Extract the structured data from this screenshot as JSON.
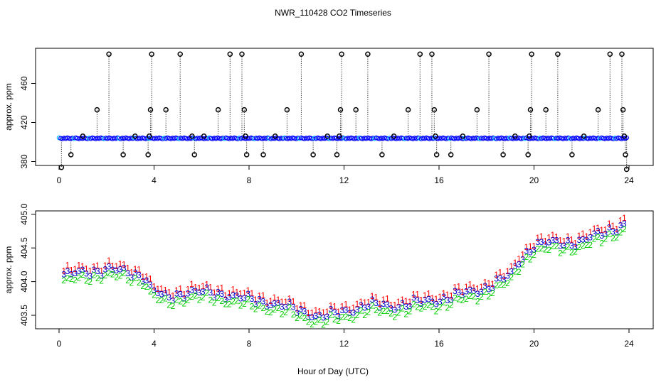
{
  "title": "NWR_110428  CO2 Timeseries",
  "xlabel": "Hour of Day (UTC)",
  "chart_data": [
    {
      "type": "scatter",
      "name": "top-panel",
      "ylabel": "approx. ppm",
      "xlim": [
        0,
        24
      ],
      "ylim": [
        376,
        496
      ],
      "x_ticks": [
        0,
        4,
        8,
        12,
        16,
        20,
        24
      ],
      "y_ticks": [
        380,
        420,
        460
      ],
      "baseline_series": {
        "name": "co2-baseline",
        "value": 403.8,
        "x_range": [
          0,
          23.9
        ],
        "colors": [
          "#0000ff",
          "#00bfff"
        ]
      },
      "spikes": [
        {
          "x": 0.1,
          "y": 374
        },
        {
          "x": 0.5,
          "y": 387
        },
        {
          "x": 1.0,
          "y": 406
        },
        {
          "x": 1.6,
          "y": 433
        },
        {
          "x": 2.1,
          "y": 490
        },
        {
          "x": 2.7,
          "y": 387
        },
        {
          "x": 3.2,
          "y": 406
        },
        {
          "x": 3.75,
          "y": 387
        },
        {
          "x": 3.8,
          "y": 406
        },
        {
          "x": 3.85,
          "y": 433
        },
        {
          "x": 3.9,
          "y": 490
        },
        {
          "x": 4.5,
          "y": 433
        },
        {
          "x": 5.1,
          "y": 490
        },
        {
          "x": 5.6,
          "y": 406
        },
        {
          "x": 5.7,
          "y": 387
        },
        {
          "x": 6.1,
          "y": 406
        },
        {
          "x": 6.7,
          "y": 433
        },
        {
          "x": 7.2,
          "y": 490
        },
        {
          "x": 7.7,
          "y": 490
        },
        {
          "x": 7.8,
          "y": 433
        },
        {
          "x": 7.85,
          "y": 406
        },
        {
          "x": 7.9,
          "y": 387
        },
        {
          "x": 8.6,
          "y": 387
        },
        {
          "x": 9.1,
          "y": 406
        },
        {
          "x": 9.6,
          "y": 433
        },
        {
          "x": 10.2,
          "y": 490
        },
        {
          "x": 10.7,
          "y": 387
        },
        {
          "x": 11.3,
          "y": 406
        },
        {
          "x": 11.7,
          "y": 387
        },
        {
          "x": 11.8,
          "y": 406
        },
        {
          "x": 11.85,
          "y": 433
        },
        {
          "x": 11.9,
          "y": 490
        },
        {
          "x": 12.5,
          "y": 433
        },
        {
          "x": 13.0,
          "y": 490
        },
        {
          "x": 13.6,
          "y": 387
        },
        {
          "x": 14.1,
          "y": 406
        },
        {
          "x": 14.7,
          "y": 433
        },
        {
          "x": 15.2,
          "y": 490
        },
        {
          "x": 15.7,
          "y": 490
        },
        {
          "x": 15.8,
          "y": 433
        },
        {
          "x": 15.85,
          "y": 406
        },
        {
          "x": 15.9,
          "y": 387
        },
        {
          "x": 16.5,
          "y": 387
        },
        {
          "x": 17.0,
          "y": 406
        },
        {
          "x": 17.6,
          "y": 433
        },
        {
          "x": 18.1,
          "y": 490
        },
        {
          "x": 18.7,
          "y": 387
        },
        {
          "x": 19.2,
          "y": 406
        },
        {
          "x": 19.75,
          "y": 387
        },
        {
          "x": 19.8,
          "y": 406
        },
        {
          "x": 19.85,
          "y": 433
        },
        {
          "x": 19.9,
          "y": 490
        },
        {
          "x": 20.5,
          "y": 433
        },
        {
          "x": 21.0,
          "y": 490
        },
        {
          "x": 21.6,
          "y": 387
        },
        {
          "x": 22.1,
          "y": 406
        },
        {
          "x": 22.7,
          "y": 433
        },
        {
          "x": 23.2,
          "y": 490
        },
        {
          "x": 23.7,
          "y": 490
        },
        {
          "x": 23.75,
          "y": 433
        },
        {
          "x": 23.8,
          "y": 406
        },
        {
          "x": 23.85,
          "y": 387
        },
        {
          "x": 23.9,
          "y": 372
        }
      ]
    },
    {
      "type": "scatter",
      "name": "bottom-panel",
      "ylabel": "approx. ppm",
      "xlim": [
        0,
        24
      ],
      "ylim": [
        403.3,
        405.05
      ],
      "x_ticks": [
        0,
        4,
        8,
        12,
        16,
        20,
        24
      ],
      "y_ticks": [
        403.5,
        404.0,
        404.5,
        405.0
      ],
      "y_tick_labels": [
        "403.5",
        "404.0",
        "404.5",
        "405.0"
      ],
      "hours": [
        0.0,
        1.0,
        2.0,
        3.0,
        3.6,
        3.9,
        4.5,
        5.5,
        7.0,
        8.0,
        9.0,
        10.0,
        11.0,
        11.6,
        12.0,
        13.0,
        14.0,
        15.0,
        16.0,
        17.0,
        18.0,
        19.0,
        19.4,
        20.0,
        21.0,
        22.0,
        23.0,
        23.8
      ],
      "profile": [
        404.05,
        404.1,
        404.15,
        404.1,
        404.05,
        403.85,
        403.72,
        403.82,
        403.78,
        403.7,
        403.65,
        403.55,
        403.45,
        403.48,
        403.52,
        403.62,
        403.6,
        403.65,
        403.7,
        403.78,
        403.88,
        404.05,
        404.3,
        404.5,
        404.55,
        404.55,
        404.72,
        404.8
      ],
      "series": [
        {
          "name": "1",
          "offset": 0.1,
          "color": "#ff0000"
        },
        {
          "name": "3",
          "offset": 0.03,
          "color": "#0000cd"
        },
        {
          "name": "2",
          "offset": -0.06,
          "color": "#00cd00"
        }
      ]
    }
  ]
}
